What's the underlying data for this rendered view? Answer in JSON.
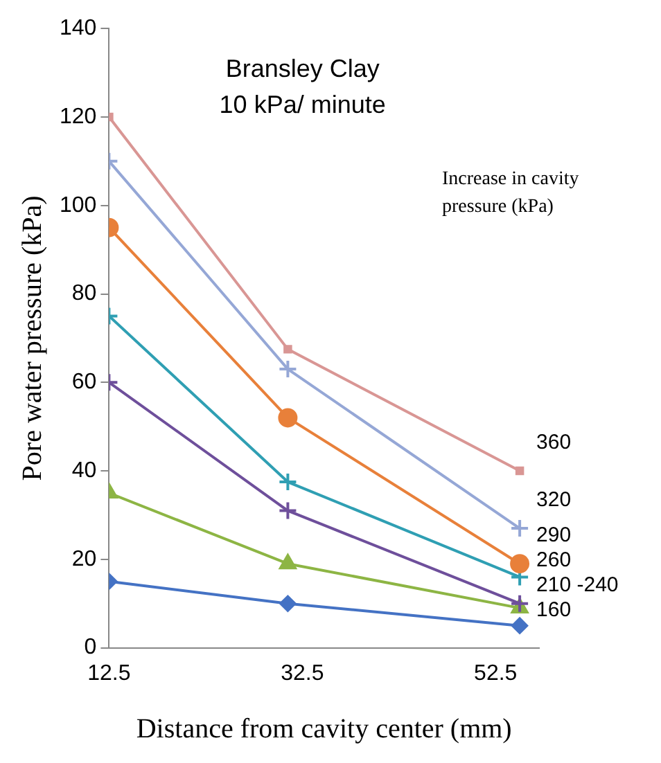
{
  "chart_data": {
    "type": "line",
    "title": "Bransley Clay",
    "subtitle": "10 kPa/ minute",
    "xlabel": "Distance from cavity center (mm)",
    "ylabel": "Pore water pressure (kPa)",
    "x": [
      12.5,
      31,
      55
    ],
    "xlim": [
      12.5,
      57
    ],
    "xticks": [
      12.5,
      32.5,
      52.5
    ],
    "ylim": [
      0,
      140
    ],
    "yticks": [
      0,
      20,
      40,
      60,
      80,
      100,
      120,
      140
    ],
    "grid": false,
    "legend": false,
    "series": [
      {
        "color": "#d99694",
        "marker": "square",
        "values": [
          120,
          67.5,
          40
        ]
      },
      {
        "color": "#95a7d6",
        "marker": "cross",
        "values": [
          110,
          63,
          27
        ]
      },
      {
        "color": "#e8803a",
        "marker": "circle",
        "values": [
          95,
          52,
          19
        ]
      },
      {
        "color": "#2f9fb3",
        "marker": "cross",
        "values": [
          75,
          37.5,
          16
        ]
      },
      {
        "color": "#6e4f9b",
        "marker": "cross",
        "values": [
          60,
          31,
          10
        ]
      },
      {
        "color": "#8db544",
        "marker": "triangle",
        "values": [
          35,
          19,
          9
        ]
      },
      {
        "color": "#4472c4",
        "marker": "diamond",
        "values": [
          15,
          10,
          5
        ]
      }
    ],
    "annotations": [
      "Increase in cavity pressure (kPa)",
      "360",
      "320",
      "290",
      "260",
      "210 -240",
      "160"
    ]
  }
}
